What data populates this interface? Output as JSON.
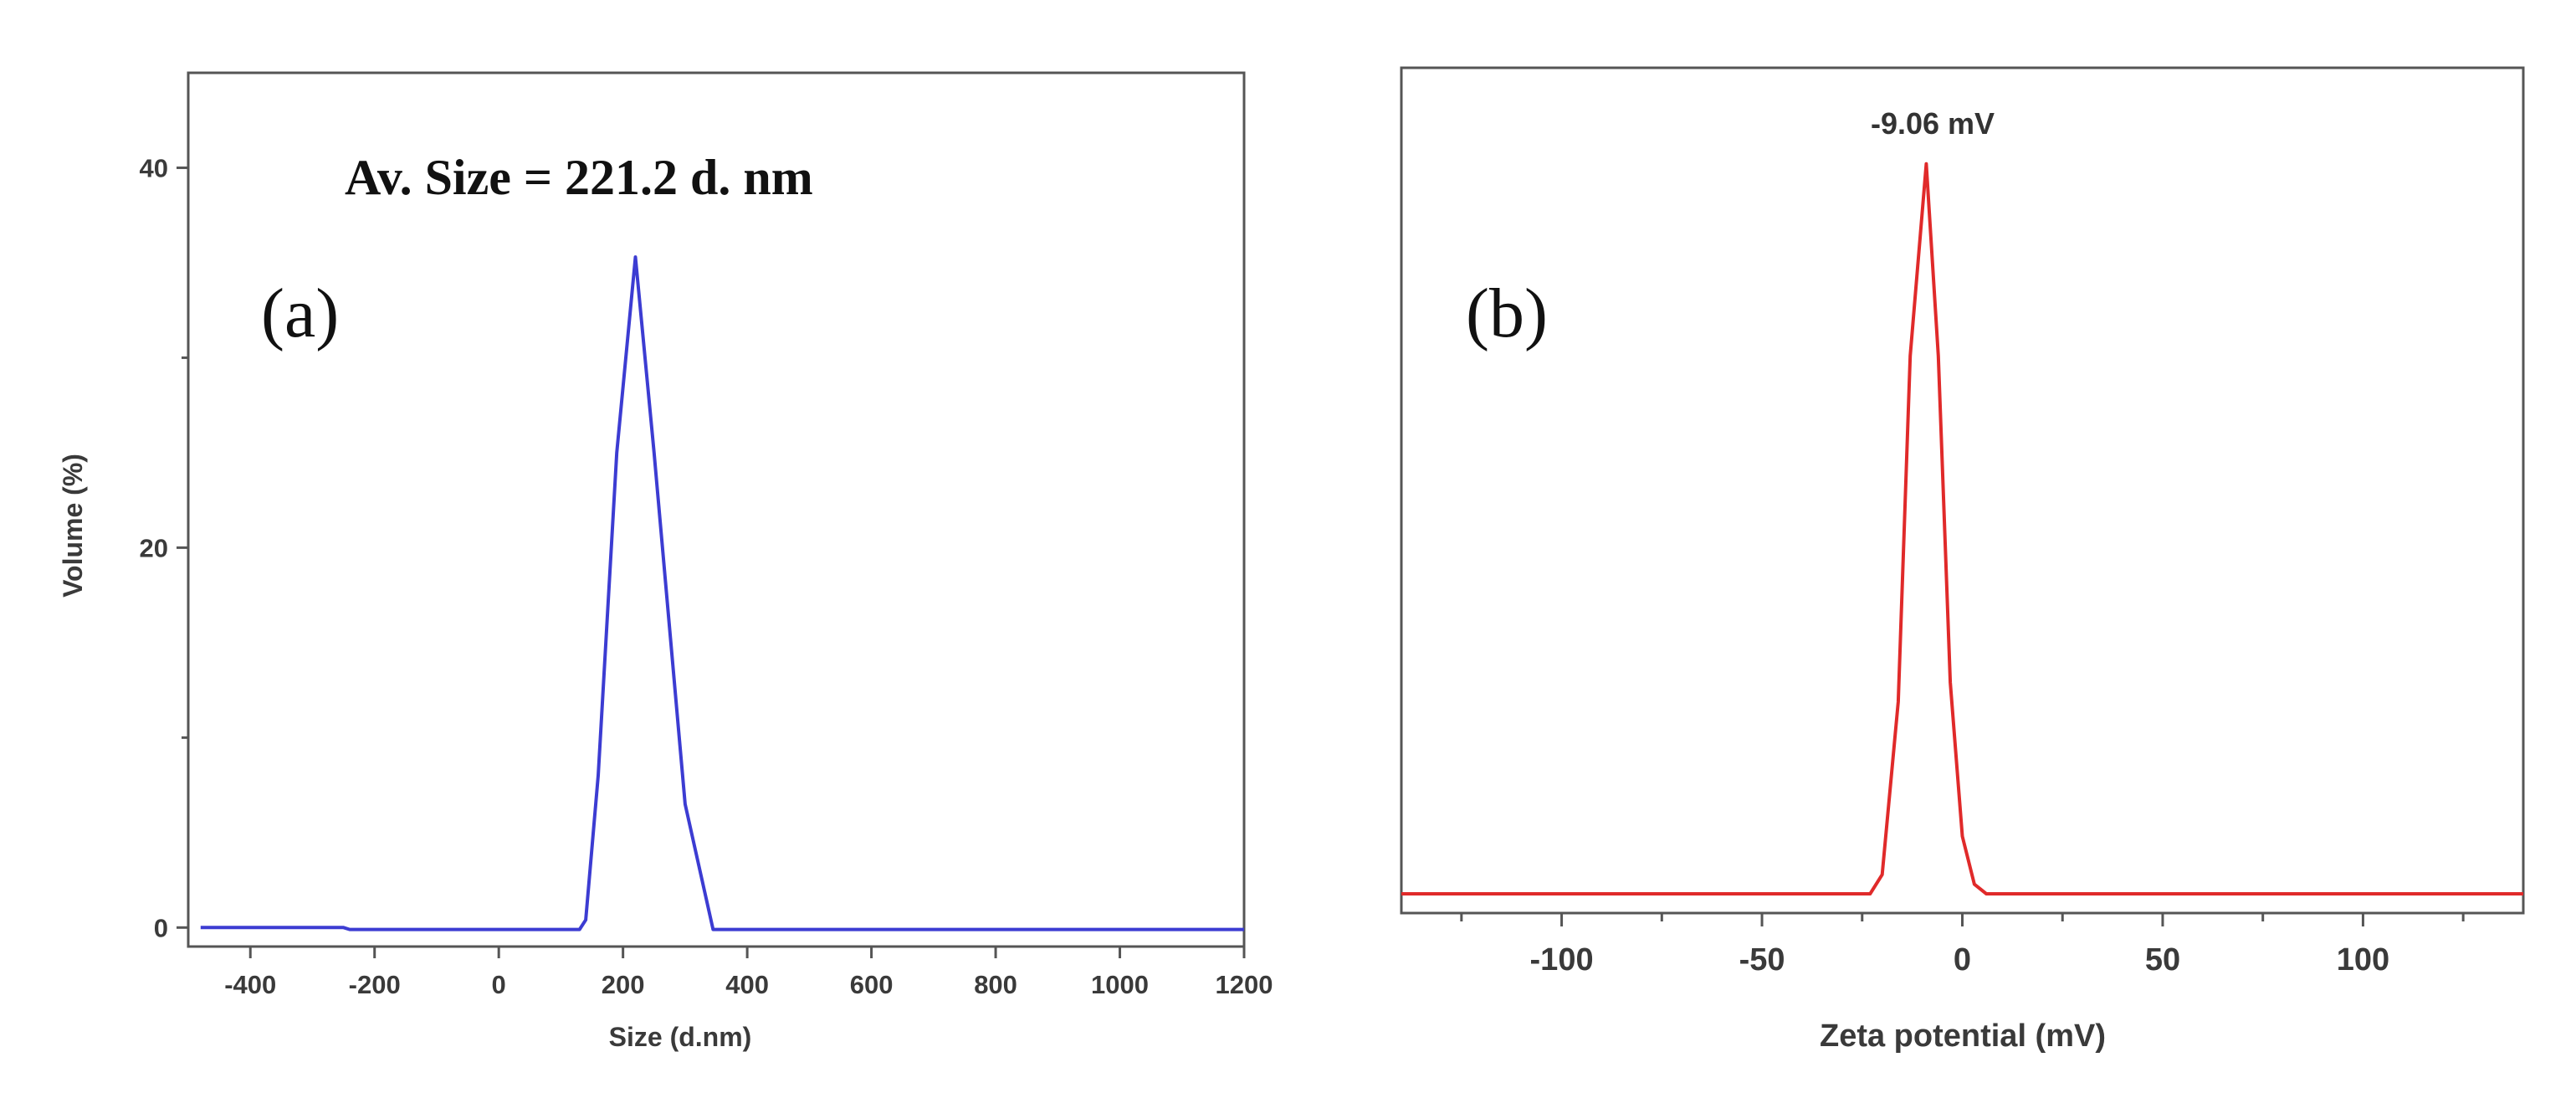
{
  "chart_data": [
    {
      "type": "line",
      "panel_label": "(a)",
      "annotation": "Av. Size = 221.2 d. nm",
      "xlabel": "Size (d.nm)",
      "ylabel": "Volume (%)",
      "xlim": [
        -500,
        1200
      ],
      "ylim": [
        -1,
        45
      ],
      "x_ticks": [
        -400,
        -200,
        0,
        200,
        400,
        600,
        800,
        1000,
        1200
      ],
      "y_ticks": [
        0,
        20,
        40
      ],
      "color": "#3c3cd2",
      "series": [
        {
          "x": [
            -480,
            -250,
            -240,
            130,
            140,
            160,
            190,
            220,
            250,
            300,
            345,
            1200
          ],
          "y": [
            0,
            0,
            -0.1,
            -0.1,
            0.4,
            8,
            25,
            35.3,
            25,
            6.5,
            -0.1,
            -0.1
          ]
        }
      ]
    },
    {
      "type": "line",
      "panel_label": "(b)",
      "annotation": "-9.06 mV",
      "xlabel": "Zeta potential (mV)",
      "ylabel": "",
      "xlim": [
        -140,
        140
      ],
      "ylim": [
        -1,
        43
      ],
      "x_ticks": [
        -100,
        -50,
        0,
        50,
        100
      ],
      "x_minor_ticks": [
        -125,
        -75,
        -25,
        25,
        75,
        125
      ],
      "color": "#e02a2a",
      "series": [
        {
          "x": [
            -140,
            -23,
            -20,
            -16,
            -13,
            -9,
            -6,
            -3,
            0,
            3,
            6,
            140
          ],
          "y": [
            0,
            0,
            1,
            10,
            28,
            38,
            28,
            11,
            3,
            0.5,
            0,
            0
          ]
        }
      ]
    }
  ]
}
